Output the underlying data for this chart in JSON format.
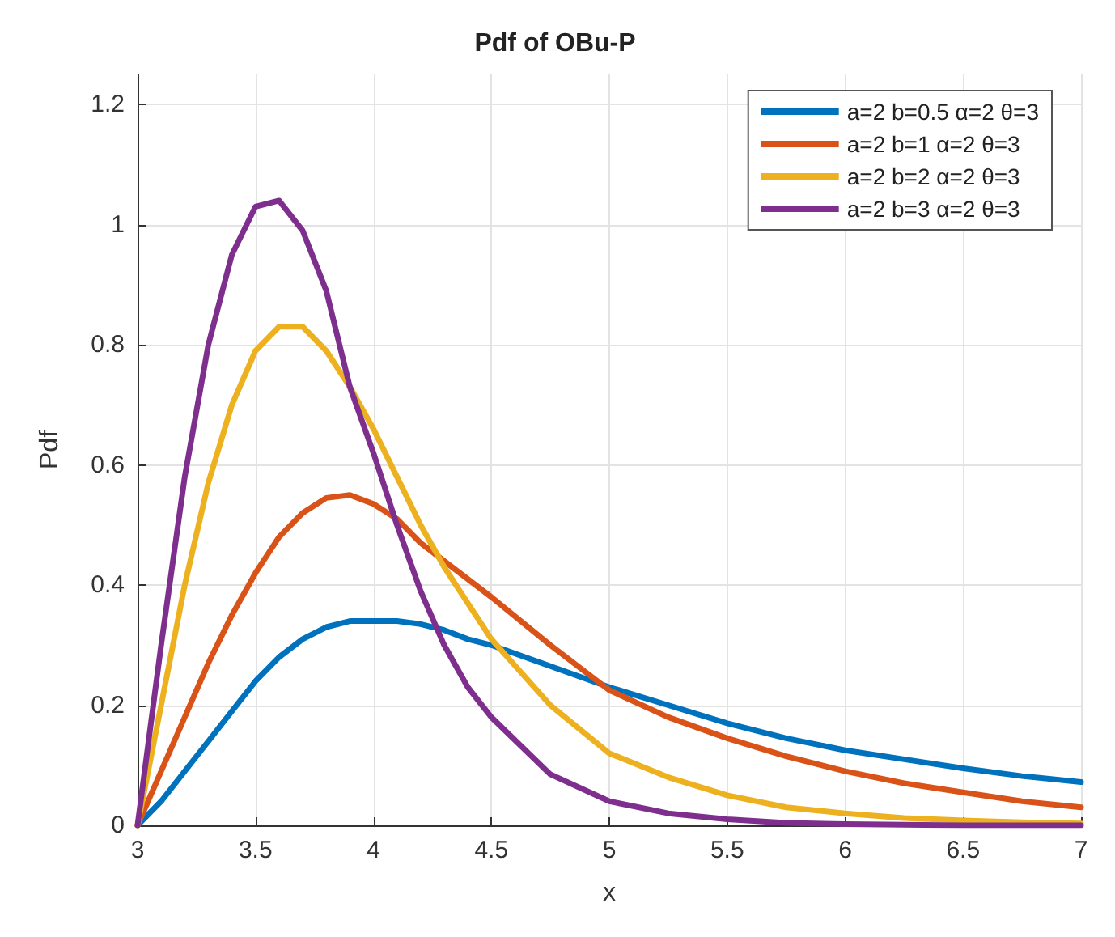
{
  "chart_data": {
    "type": "line",
    "title": "Pdf of OBu-P",
    "xlabel": "x",
    "ylabel": "Pdf",
    "x": [
      3,
      3.1,
      3.2,
      3.3,
      3.4,
      3.5,
      3.6,
      3.7,
      3.8,
      3.9,
      4,
      4.1,
      4.2,
      4.3,
      4.4,
      4.5,
      4.75,
      5,
      5.25,
      5.5,
      5.75,
      6,
      6.25,
      6.5,
      6.75,
      7
    ],
    "series": [
      {
        "name": "a=2 b=0.5 α=2 θ=3",
        "color": "#0072bd",
        "values": [
          0,
          0.04,
          0.09,
          0.14,
          0.19,
          0.24,
          0.28,
          0.31,
          0.33,
          0.34,
          0.34,
          0.34,
          0.335,
          0.325,
          0.31,
          0.3,
          0.265,
          0.23,
          0.2,
          0.17,
          0.145,
          0.125,
          0.11,
          0.095,
          0.082,
          0.072
        ]
      },
      {
        "name": "a=2 b=1 α=2 θ=3",
        "color": "#d95319",
        "values": [
          0,
          0.09,
          0.18,
          0.27,
          0.35,
          0.42,
          0.48,
          0.52,
          0.545,
          0.55,
          0.535,
          0.51,
          0.47,
          0.44,
          0.41,
          0.38,
          0.3,
          0.225,
          0.18,
          0.145,
          0.115,
          0.09,
          0.07,
          0.055,
          0.04,
          0.03
        ]
      },
      {
        "name": "a=2 b=2 α=2 θ=3",
        "color": "#edb120",
        "values": [
          0,
          0.2,
          0.4,
          0.57,
          0.7,
          0.79,
          0.83,
          0.83,
          0.79,
          0.73,
          0.66,
          0.58,
          0.5,
          0.43,
          0.37,
          0.31,
          0.2,
          0.12,
          0.08,
          0.05,
          0.03,
          0.02,
          0.012,
          0.008,
          0.005,
          0.003
        ]
      },
      {
        "name": "a=2 b=3 α=2 θ=3",
        "color": "#7e2f8e",
        "values": [
          0,
          0.3,
          0.58,
          0.8,
          0.95,
          1.03,
          1.04,
          0.99,
          0.89,
          0.73,
          0.62,
          0.5,
          0.39,
          0.3,
          0.23,
          0.18,
          0.085,
          0.04,
          0.02,
          0.01,
          0.004,
          0.002,
          0.001,
          0,
          0,
          0
        ]
      }
    ],
    "xlim": [
      3,
      7
    ],
    "xticks": [
      3,
      3.5,
      4,
      4.5,
      5,
      5.5,
      6,
      6.5,
      7
    ],
    "ylim": [
      0,
      1.25
    ],
    "yticks": [
      0,
      0.2,
      0.4,
      0.6,
      0.8,
      1,
      1.2
    ],
    "grid": true,
    "legend": "top right",
    "marker": "none",
    "line_style": "solid"
  }
}
